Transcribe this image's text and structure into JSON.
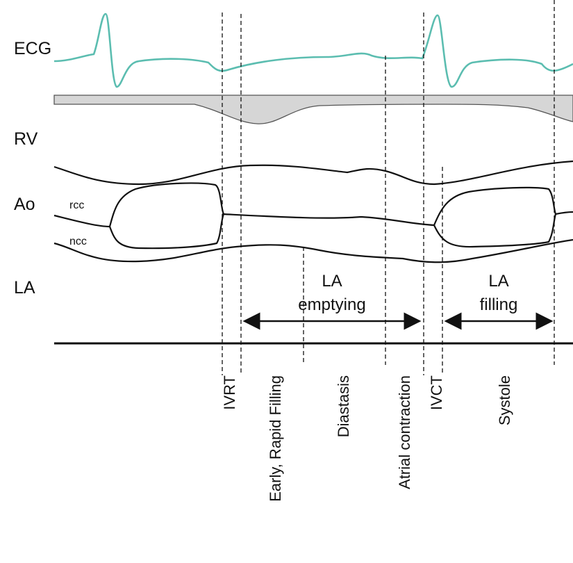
{
  "rows": [
    "ECG",
    "RV",
    "Ao",
    "LA"
  ],
  "valve_labels": [
    "rcc",
    "ncc"
  ],
  "annotations": [
    {
      "lines": [
        "LA",
        "emptying"
      ]
    },
    {
      "lines": [
        "LA",
        "filling"
      ]
    }
  ],
  "phases": [
    "IVRT",
    "Early, Rapid Filling",
    "Diastasis",
    "Atrial contraction",
    "IVCT",
    "Systole"
  ]
}
